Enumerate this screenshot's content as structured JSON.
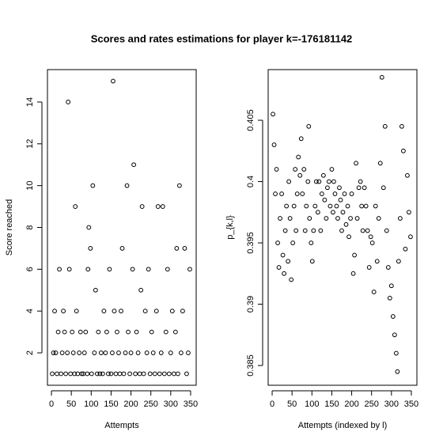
{
  "chart_data": [
    {
      "type": "scatter",
      "title": "Scores and rates estimations for player k=-176181142",
      "xlabel": "Attempts",
      "ylabel": "Score reached",
      "color": "#000000",
      "xlim": [
        -10,
        364
      ],
      "ylim": [
        0.45,
        15.55
      ],
      "xticks": [
        0,
        50,
        100,
        150,
        200,
        250,
        300,
        350
      ],
      "yticks": [
        2,
        4,
        6,
        8,
        10,
        12,
        14
      ],
      "x": [
        2,
        5,
        8,
        11,
        14,
        17,
        20,
        24,
        27,
        30,
        33,
        36,
        40,
        42,
        45,
        48,
        52,
        55,
        58,
        60,
        63,
        66,
        70,
        73,
        76,
        80,
        83,
        86,
        90,
        92,
        94,
        98,
        101,
        104,
        108,
        111,
        115,
        118,
        122,
        125,
        129,
        132,
        136,
        139,
        143,
        146,
        150,
        153,
        155,
        158,
        162,
        165,
        169,
        172,
        175,
        178,
        182,
        186,
        190,
        193,
        197,
        200,
        204,
        207,
        211,
        214,
        218,
        222,
        225,
        228,
        232,
        236,
        240,
        244,
        248,
        252,
        256,
        260,
        264,
        268,
        272,
        276,
        280,
        284,
        288,
        292,
        296,
        300,
        304,
        308,
        312,
        315,
        318,
        322,
        326,
        330,
        335,
        340,
        344,
        348
      ],
      "values": [
        1,
        2,
        4,
        2,
        1,
        3,
        6,
        1,
        2,
        4,
        3,
        1,
        2,
        14,
        6,
        1,
        3,
        2,
        1,
        9,
        4,
        1,
        2,
        3,
        1,
        1,
        2,
        3,
        1,
        6,
        8,
        7,
        1,
        10,
        2,
        5,
        1,
        3,
        1,
        2,
        1,
        4,
        2,
        3,
        1,
        6,
        1,
        2,
        15,
        4,
        1,
        3,
        2,
        1,
        4,
        7,
        1,
        2,
        10,
        3,
        1,
        2,
        6,
        11,
        1,
        3,
        2,
        1,
        5,
        9,
        1,
        4,
        2,
        6,
        1,
        3,
        2,
        1,
        4,
        9,
        1,
        2,
        9,
        1,
        3,
        6,
        1,
        2,
        4,
        1,
        3,
        7,
        1,
        10,
        2,
        4,
        7,
        1,
        2,
        6
      ]
    },
    {
      "type": "scatter",
      "xlabel": "Attempts (indexed by l)",
      "ylabel": "p_{k,l}",
      "color": "#000000",
      "xlim": [
        -10,
        364
      ],
      "ylim": [
        0.38339,
        0.40913
      ],
      "xticks": [
        0,
        50,
        100,
        150,
        200,
        250,
        300,
        350
      ],
      "yticks": [
        0.385,
        0.39,
        0.395,
        0.4,
        0.405
      ],
      "x": [
        2,
        5,
        8,
        11,
        14,
        17,
        20,
        24,
        27,
        30,
        33,
        36,
        40,
        42,
        45,
        48,
        52,
        55,
        58,
        60,
        63,
        66,
        70,
        73,
        76,
        80,
        83,
        86,
        90,
        92,
        94,
        98,
        101,
        104,
        108,
        111,
        115,
        118,
        122,
        125,
        129,
        132,
        136,
        139,
        143,
        146,
        150,
        153,
        155,
        158,
        162,
        165,
        169,
        172,
        175,
        178,
        182,
        186,
        190,
        193,
        197,
        200,
        204,
        207,
        211,
        214,
        218,
        222,
        225,
        228,
        232,
        236,
        240,
        244,
        248,
        252,
        256,
        260,
        264,
        268,
        272,
        276,
        280,
        284,
        288,
        292,
        296,
        300,
        304,
        308,
        312,
        315,
        318,
        322,
        326,
        330,
        335,
        340,
        344,
        348
      ],
      "values": [
        0.4055,
        0.403,
        0.399,
        0.401,
        0.395,
        0.393,
        0.397,
        0.399,
        0.394,
        0.3925,
        0.396,
        0.398,
        0.3935,
        0.4,
        0.397,
        0.392,
        0.395,
        0.398,
        0.401,
        0.396,
        0.399,
        0.402,
        0.4005,
        0.4035,
        0.399,
        0.401,
        0.396,
        0.398,
        0.4,
        0.4045,
        0.397,
        0.395,
        0.3935,
        0.396,
        0.398,
        0.4,
        0.3975,
        0.4,
        0.396,
        0.399,
        0.4005,
        0.3985,
        0.397,
        0.3995,
        0.4,
        0.398,
        0.401,
        0.3975,
        0.4,
        0.399,
        0.398,
        0.397,
        0.3995,
        0.3985,
        0.396,
        0.3975,
        0.399,
        0.3965,
        0.398,
        0.3955,
        0.397,
        0.399,
        0.3925,
        0.394,
        0.4015,
        0.397,
        0.3995,
        0.4,
        0.398,
        0.396,
        0.3995,
        0.398,
        0.396,
        0.393,
        0.3955,
        0.395,
        0.391,
        0.398,
        0.3935,
        0.397,
        0.4015,
        0.4085,
        0.3995,
        0.4045,
        0.396,
        0.393,
        0.3905,
        0.3915,
        0.389,
        0.3875,
        0.386,
        0.3845,
        0.3935,
        0.397,
        0.4045,
        0.4025,
        0.3945,
        0.4005,
        0.3975,
        0.3955
      ]
    }
  ]
}
